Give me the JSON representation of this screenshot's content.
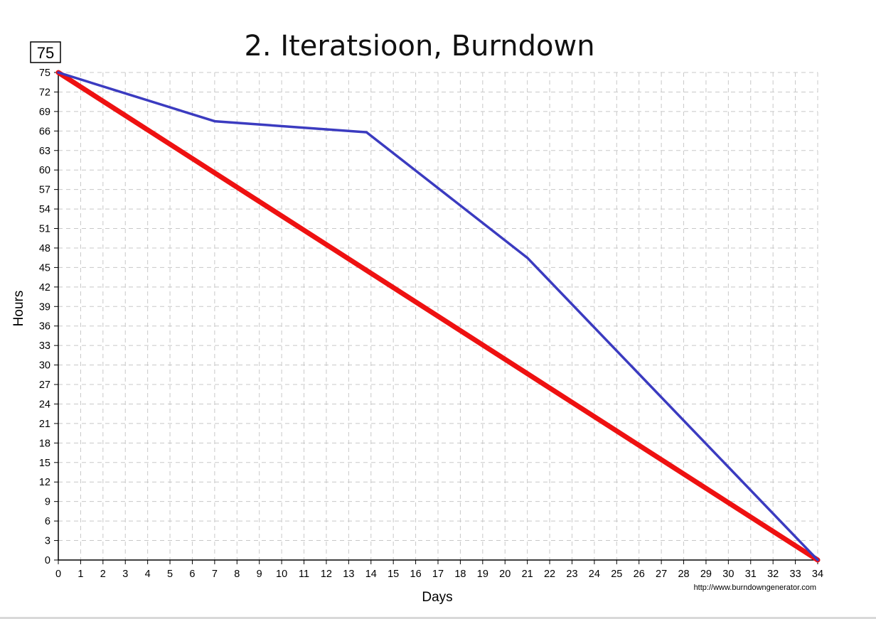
{
  "max_badge": "75",
  "credit": "http://www.burndowngenerator.com",
  "colors": {
    "ideal": "#ee1111",
    "actual": "#3b3bc0",
    "grid": "#c8c8c8",
    "axis": "#000000"
  },
  "chart_data": {
    "type": "line",
    "title": "2. Iteratsioon, Burndown",
    "xlabel": "Days",
    "ylabel": "Hours",
    "xlim": [
      0,
      34
    ],
    "ylim": [
      0,
      75
    ],
    "x_ticks": [
      0,
      1,
      2,
      3,
      4,
      5,
      6,
      7,
      8,
      9,
      10,
      11,
      12,
      13,
      14,
      15,
      16,
      17,
      18,
      19,
      20,
      21,
      22,
      23,
      24,
      25,
      26,
      27,
      28,
      29,
      30,
      31,
      32,
      33,
      34
    ],
    "y_ticks": [
      0,
      3,
      6,
      9,
      12,
      15,
      18,
      21,
      24,
      27,
      30,
      33,
      36,
      39,
      42,
      45,
      48,
      51,
      54,
      57,
      60,
      63,
      66,
      69,
      72,
      75
    ],
    "grid": true,
    "series": [
      {
        "key": "ideal",
        "x": [
          0,
          34
        ],
        "y": [
          75,
          0
        ]
      },
      {
        "key": "actual",
        "x": [
          0,
          7,
          13.8,
          21,
          34
        ],
        "y": [
          75,
          67.5,
          65.8,
          46.5,
          0
        ]
      }
    ]
  }
}
